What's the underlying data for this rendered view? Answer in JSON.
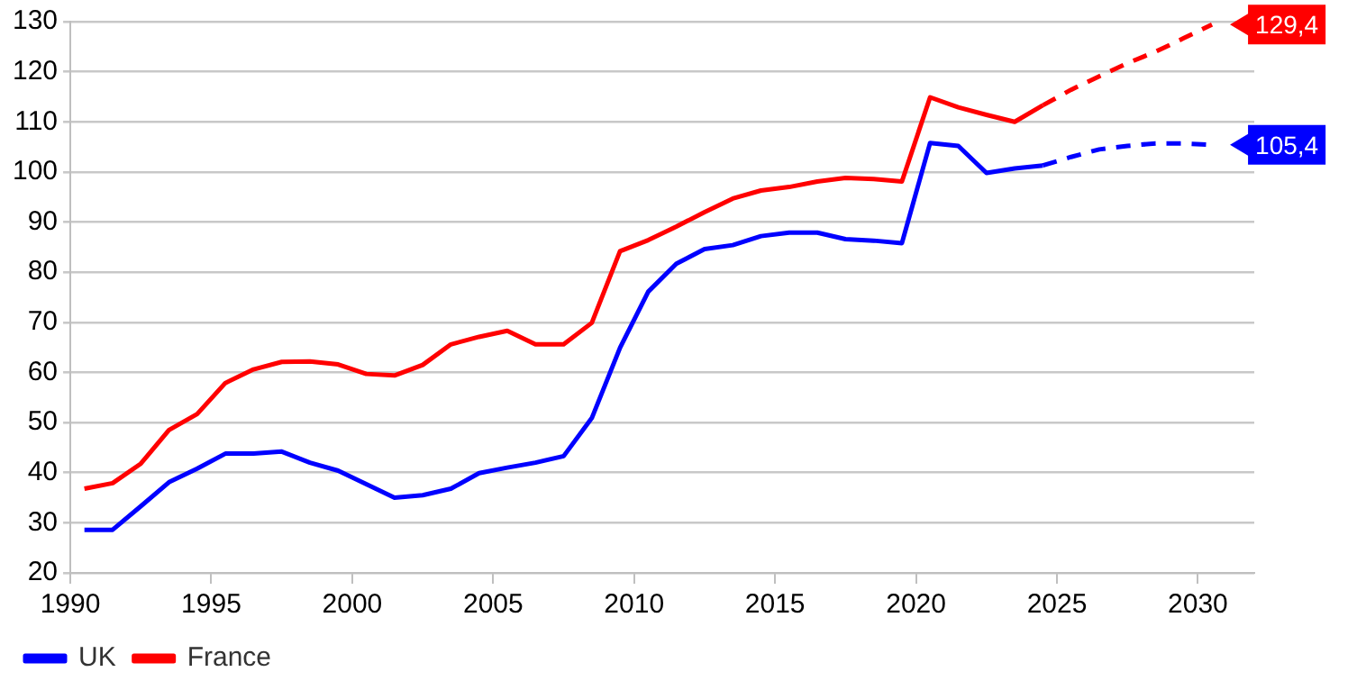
{
  "chart_data": {
    "type": "line",
    "xlim": [
      1990,
      2032
    ],
    "xticks": [
      1990,
      1995,
      2000,
      2005,
      2010,
      2015,
      2020,
      2025,
      2030
    ],
    "ylim": [
      20,
      130
    ],
    "yticks": [
      20,
      30,
      40,
      50,
      60,
      70,
      80,
      90,
      100,
      110,
      120,
      130
    ],
    "grid": "y",
    "legend": "bottom left",
    "marker": "none",
    "series": [
      {
        "name": "UK",
        "color": "#0000ff",
        "line_style": "solid",
        "x": [
          1990.5,
          1991.5,
          1992.5,
          1993.5,
          1994.5,
          1995.5,
          1996.5,
          1997.5,
          1998.5,
          1999.5,
          2000.5,
          2001.5,
          2002.5,
          2003.5,
          2004.5,
          2005.5,
          2006.5,
          2007.5,
          2008.5,
          2009.5,
          2010.5,
          2011.5,
          2012.5,
          2013.5,
          2014.5,
          2015.5,
          2016.5,
          2017.5,
          2018.5,
          2019.5,
          2020.5,
          2021.5,
          2022.5,
          2023.5,
          2024.5
        ],
        "values": [
          28.6,
          28.6,
          33.3,
          38.1,
          40.8,
          43.8,
          43.8,
          44.2,
          42.0,
          40.4,
          37.7,
          35.0,
          35.5,
          36.8,
          39.9,
          41.0,
          42.0,
          43.3,
          50.9,
          64.9,
          76.1,
          81.7,
          84.6,
          85.4,
          87.2,
          87.9,
          87.9,
          86.6,
          86.3,
          85.8,
          105.8,
          105.2,
          99.8,
          100.7,
          101.3
        ]
      },
      {
        "name": "France",
        "color": "#ff0000",
        "line_style": "solid",
        "x": [
          1990.5,
          1991.5,
          1992.5,
          1993.5,
          1994.5,
          1995.5,
          1996.5,
          1997.5,
          1998.5,
          1999.5,
          2000.5,
          2001.5,
          2002.5,
          2003.5,
          2004.5,
          2005.5,
          2006.5,
          2007.5,
          2008.5,
          2009.5,
          2010.5,
          2011.5,
          2012.5,
          2013.5,
          2014.5,
          2015.5,
          2016.5,
          2017.5,
          2018.5,
          2019.5,
          2020.5,
          2021.5,
          2022.5,
          2023.5,
          2024.5
        ],
        "values": [
          36.8,
          37.9,
          41.8,
          48.5,
          51.7,
          57.9,
          60.6,
          62.1,
          62.2,
          61.6,
          59.7,
          59.4,
          61.5,
          65.6,
          67.1,
          68.3,
          65.6,
          65.6,
          69.9,
          84.2,
          86.4,
          89.1,
          92.0,
          94.7,
          96.3,
          97.0,
          98.1,
          98.8,
          98.6,
          98.1,
          114.9,
          112.9,
          111.4,
          110.0,
          113.3
        ]
      },
      {
        "color": "#0000ff",
        "line_style": "dashed",
        "x": [
          2024.5,
          2025.5,
          2026.5,
          2027.5,
          2028.5,
          2029.5,
          2030.5
        ],
        "values": [
          101.3,
          103.0,
          104.5,
          105.2,
          105.7,
          105.7,
          105.4
        ],
        "value_labels": [
          null,
          null,
          null,
          null,
          null,
          null,
          "105,4"
        ]
      },
      {
        "color": "#ff0000",
        "line_style": "dashed",
        "x": [
          2024.5,
          2025.5,
          2026.5,
          2027.5,
          2028.5,
          2029.5,
          2030.5
        ],
        "values": [
          113.3,
          116.4,
          119.1,
          121.7,
          124.0,
          126.7,
          129.4
        ],
        "value_labels": [
          null,
          null,
          null,
          null,
          null,
          null,
          "129,4"
        ]
      }
    ]
  }
}
